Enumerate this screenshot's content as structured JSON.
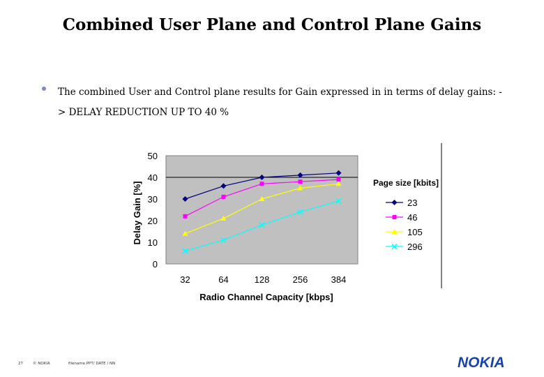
{
  "slide": {
    "title": "Combined User Plane and Control Plane Gains",
    "bullet": "The combined User and Control plane results for Gain expressed in in terms of delay gains: -> DELAY REDUCTION UP TO 40 %",
    "footer_page": "27",
    "footer_copyright": "© NOKIA",
    "footer_doc": "filename.PPT/ DATE / NN",
    "logo": "NOKIA"
  },
  "colors": {
    "bullet": "#7f8ac8",
    "plot_bg": "#c0c0c0",
    "logo": "#1a43a8"
  },
  "chart_data": {
    "type": "line",
    "title": "",
    "xlabel": "Radio Channel Capacity [kbps]",
    "ylabel": "Delay Gain [%]",
    "categories": [
      "32",
      "64",
      "128",
      "256",
      "384"
    ],
    "ylim": [
      0,
      50
    ],
    "yticks": [
      0,
      10,
      20,
      30,
      40,
      50
    ],
    "grid": "horizontal line at 40",
    "legend_title": "Page size [kbits]",
    "legend_position": "right",
    "series": [
      {
        "name": "23",
        "color": "#000080",
        "marker": "diamond",
        "values": [
          30,
          36,
          40,
          41,
          42
        ]
      },
      {
        "name": "46",
        "color": "#ff00ff",
        "marker": "square",
        "values": [
          22,
          31,
          37,
          38,
          39
        ]
      },
      {
        "name": "105",
        "color": "#ffff00",
        "marker": "triangle",
        "values": [
          14,
          21,
          30,
          35,
          37
        ]
      },
      {
        "name": "296",
        "color": "#00ffff",
        "marker": "x",
        "values": [
          6,
          11,
          18,
          24,
          29
        ]
      }
    ]
  }
}
